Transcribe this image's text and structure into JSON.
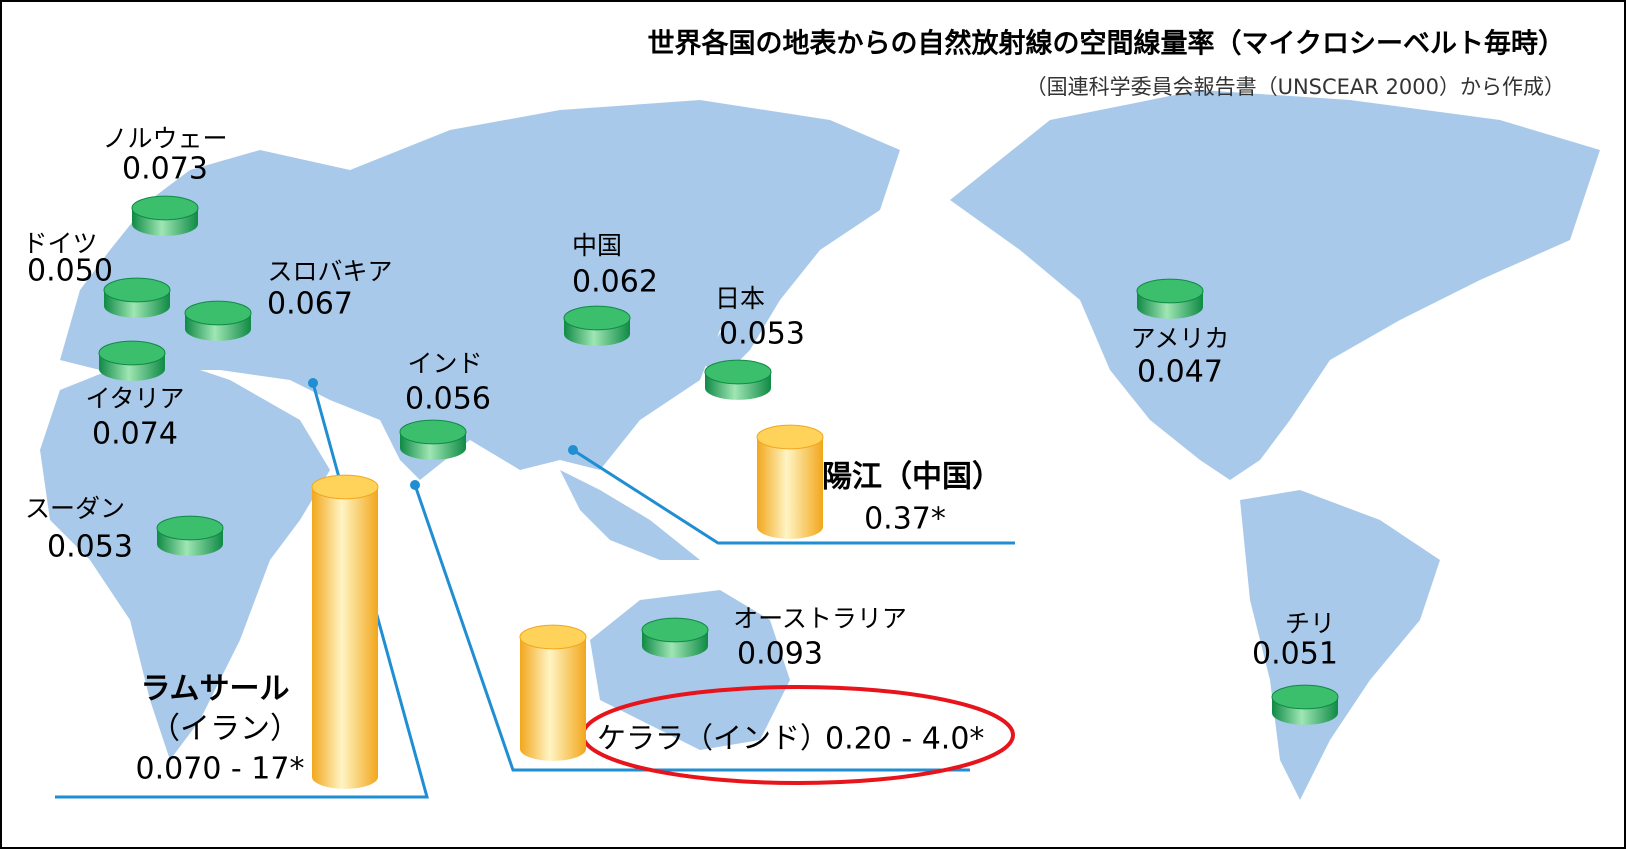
{
  "title": "世界各国の地表からの自然放射線の空間線量率（マイクロシーベルト毎時）",
  "subtitle": "（国連科学委員会報告書（UNSCEAR 2000）から作成）",
  "places": [
    {
      "name": "ノルウェー",
      "value": "0.073"
    },
    {
      "name": "ドイツ",
      "value": "0.050"
    },
    {
      "name": "スロバキア",
      "value": "0.067"
    },
    {
      "name": "イタリア",
      "value": "0.074"
    },
    {
      "name": "スーダン",
      "value": "0.053"
    },
    {
      "name": "中国",
      "value": "0.062"
    },
    {
      "name": "日本",
      "value": "0.053"
    },
    {
      "name": "インド",
      "value": "0.056"
    },
    {
      "name": "アメリカ",
      "value": "0.047"
    },
    {
      "name": "オーストラリア",
      "value": "0.093"
    },
    {
      "name": "チリ",
      "value": "0.051"
    }
  ],
  "high_areas": [
    {
      "name": "陽江（中国）",
      "value": "0.37*"
    },
    {
      "name": "ラムサール",
      "region": "（イラン）",
      "value": "0.070 - 17*"
    },
    {
      "name": "ケララ（インド）",
      "value": "0.20 - 4.0*"
    }
  ]
}
